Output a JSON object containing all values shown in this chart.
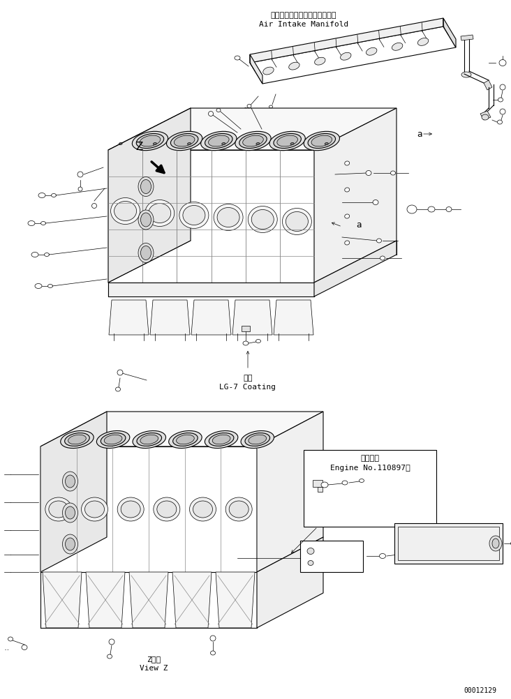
{
  "bg_color": "#ffffff",
  "line_color": "#000000",
  "fig_width": 7.32,
  "fig_height": 10.02,
  "title_jp": "エアーインテークマニホールド",
  "title_en": "Air Intake Manifold",
  "label_coating_jp": "塗布",
  "label_coating_en": "LG-7 Coating",
  "label_engine_jp": "適用号機",
  "label_engine_en": "Engine No.110897～",
  "label_view_jp": "Z　視",
  "label_view_en": "View Z",
  "label_a": "a",
  "label_z": "Z",
  "part_number": "00012129",
  "font_size_small": 7,
  "font_size_medium": 8,
  "font_size_large": 9
}
